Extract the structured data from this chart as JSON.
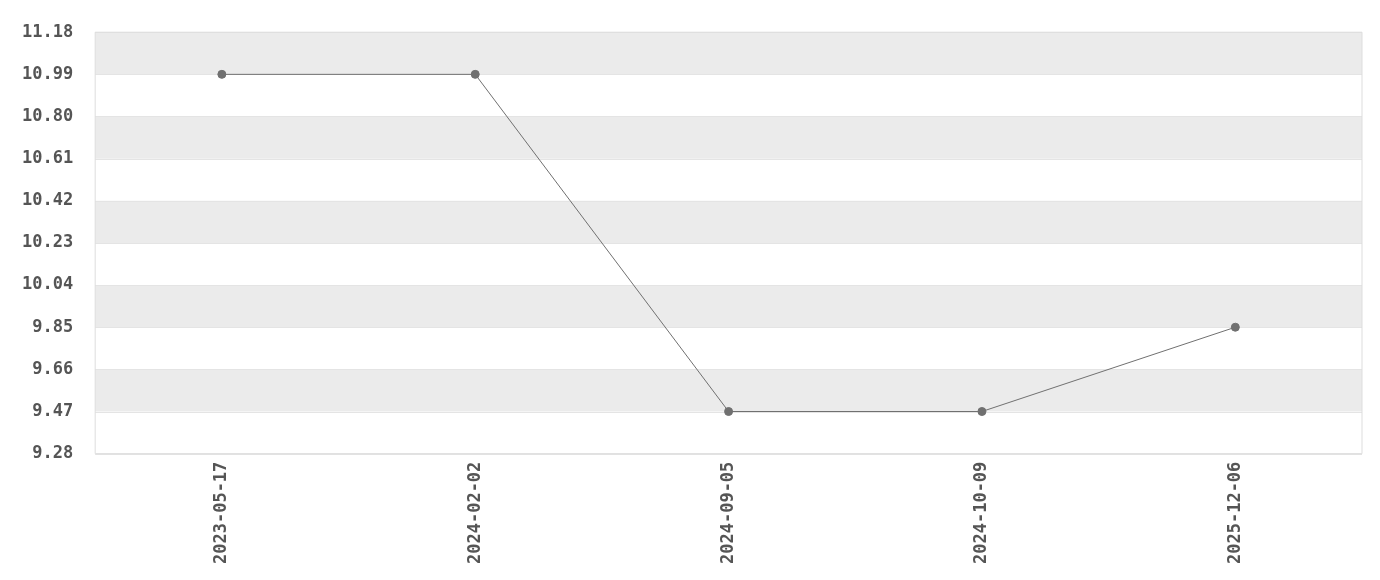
{
  "chart_data": {
    "type": "line",
    "categories": [
      "2023-05-17",
      "2024-02-02",
      "2024-09-05",
      "2024-10-09",
      "2025-12-06"
    ],
    "series": [
      {
        "color": "#707070",
        "values": [
          10.99,
          10.99,
          9.47,
          9.47,
          9.85
        ]
      }
    ],
    "ylim": [
      9.28,
      11.18
    ],
    "yticks": [
      9.28,
      9.47,
      9.66,
      9.85,
      10.04,
      10.23,
      10.42,
      10.61,
      {
        "value": 10.8,
        "label": "10.80"
      },
      10.99,
      11.18
    ],
    "grid": "y",
    "legend": false,
    "marker": "circle",
    "line_style": "solid"
  }
}
